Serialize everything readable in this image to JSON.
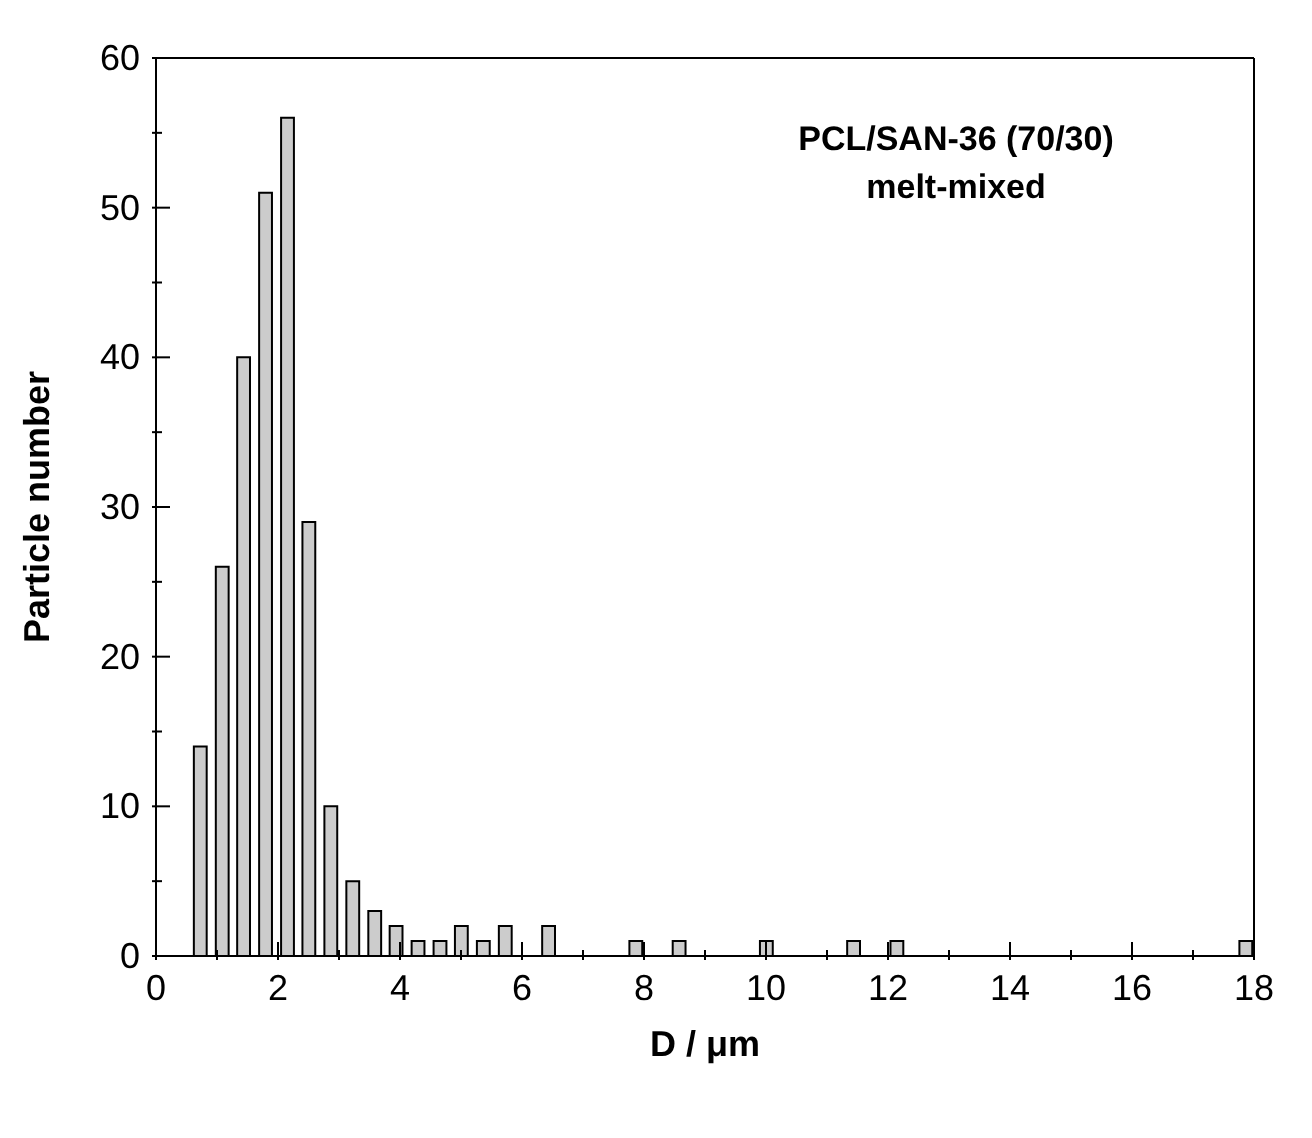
{
  "chart_data": {
    "type": "bar",
    "xlabel": "D / μm",
    "ylabel": "Particle number",
    "annotations": [
      "PCL/SAN-36 (70/30)",
      "melt-mixed"
    ],
    "x": [
      0.73,
      1.09,
      1.44,
      1.8,
      2.16,
      2.51,
      2.87,
      3.23,
      3.59,
      3.94,
      4.3,
      4.66,
      5.01,
      5.37,
      5.73,
      6.44,
      7.87,
      8.58,
      10.01,
      11.44,
      12.15,
      17.87
    ],
    "values": [
      14,
      26,
      40,
      51,
      56,
      29,
      10,
      5,
      3,
      2,
      1,
      1,
      2,
      1,
      2,
      2,
      1,
      1,
      1,
      1,
      1,
      1
    ],
    "color": "#cccccc",
    "xlim": [
      0,
      18
    ],
    "xticks": [
      0,
      {
        "value": 1,
        "label": null
      },
      2,
      {
        "value": 3,
        "label": null
      },
      4,
      {
        "value": 5,
        "label": null
      },
      6,
      {
        "value": 7,
        "label": null
      },
      8,
      {
        "value": 9,
        "label": null
      },
      10,
      {
        "value": 11,
        "label": null
      },
      12,
      {
        "value": 13,
        "label": null
      },
      14,
      {
        "value": 15,
        "label": null
      },
      16,
      {
        "value": 17,
        "label": null
      },
      18
    ],
    "ylim": [
      0,
      60
    ],
    "yticks": [
      0,
      {
        "value": 5,
        "label": null
      },
      10,
      {
        "value": 15,
        "label": null
      },
      20,
      {
        "value": 25,
        "label": null
      },
      30,
      {
        "value": 35,
        "label": null
      },
      40,
      {
        "value": 45,
        "label": null
      },
      50,
      {
        "value": 55,
        "label": null
      },
      60
    ],
    "grid": false
  }
}
